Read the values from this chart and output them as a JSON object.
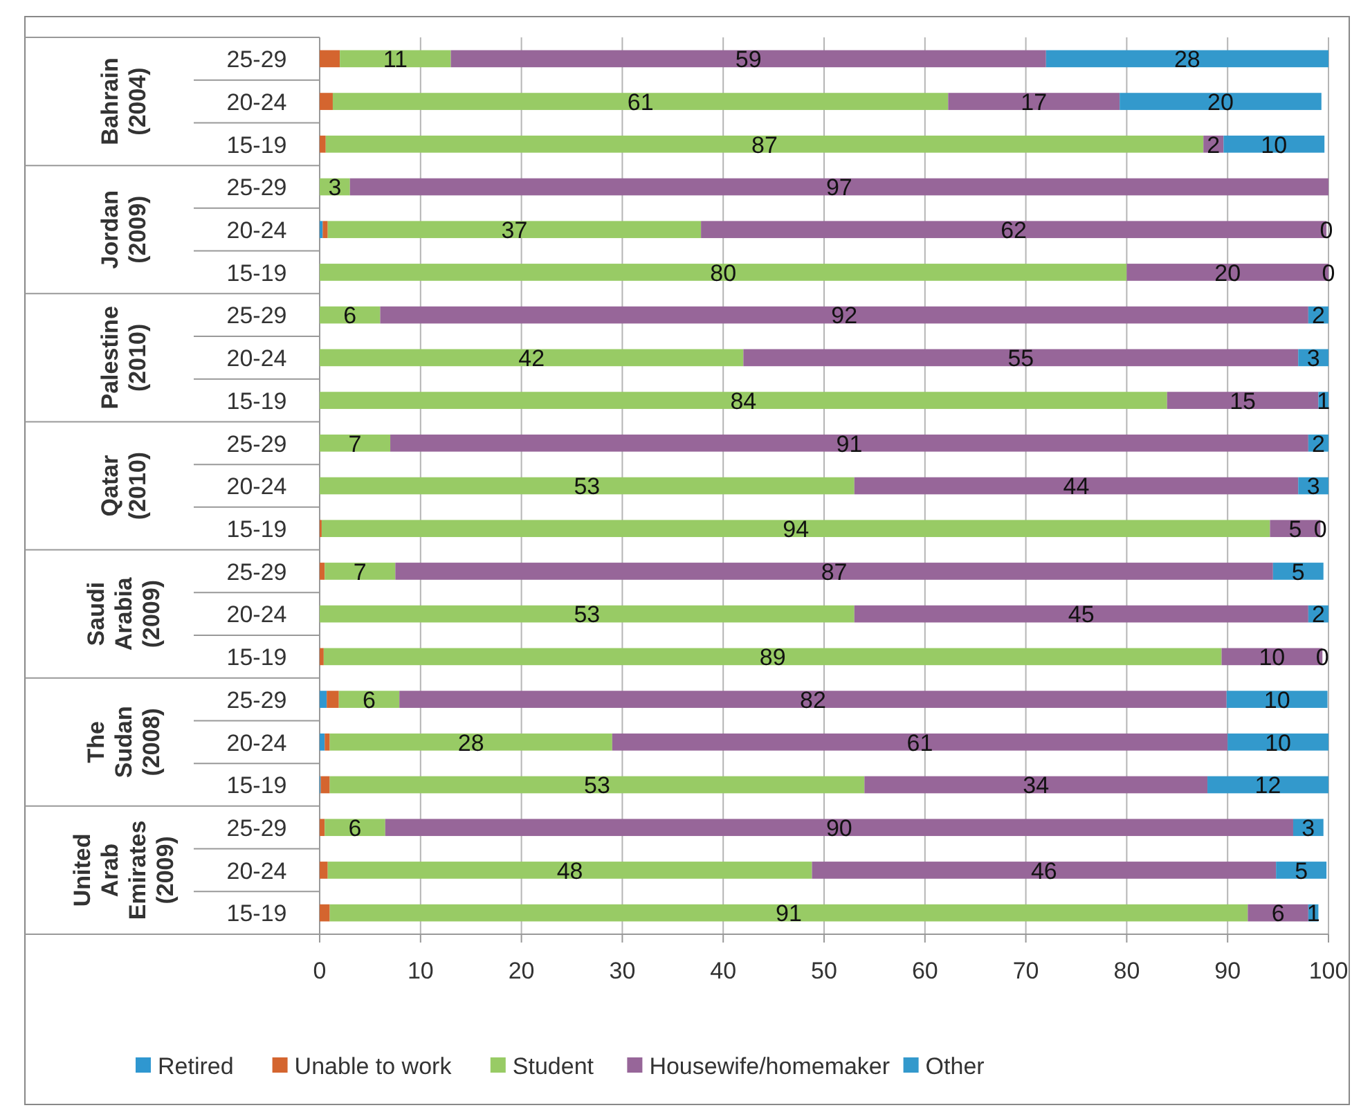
{
  "chart_data": {
    "type": "bar",
    "orientation": "horizontal",
    "stacked": true,
    "categories": [
      "25-29",
      "20-24",
      "15-19",
      "25-29",
      "20-24",
      "15-19",
      "25-29",
      "20-24",
      "15-19",
      "25-29",
      "20-24",
      "15-19",
      "25-29",
      "20-24",
      "15-19",
      "25-29",
      "20-24",
      "15-19",
      "25-29",
      "20-24",
      "15-19"
    ],
    "annotations": [
      "Bahrain (2004)",
      "Jordan (2009)",
      "Palestine (2010)",
      "Qatar (2010)",
      "Saudi Arabia (2009)",
      "The Sudan (2008)",
      "United Arab Emirates (2009)"
    ],
    "series": [
      {
        "name": "Retired",
        "color": "#2f97d0",
        "values": [
          0,
          0,
          0,
          0,
          0.3,
          0,
          0,
          0,
          0,
          0,
          0,
          0,
          0,
          0,
          0,
          0.7,
          0.5,
          0.1,
          0,
          0,
          0
        ]
      },
      {
        "name": "Unable to work",
        "color": "#d4652f",
        "values": [
          2,
          1.3,
          0.6,
          0,
          0.5,
          0,
          0,
          0,
          0,
          0,
          0,
          0.2,
          0.5,
          0,
          0.4,
          1.2,
          0.5,
          0.9,
          0.5,
          0.8,
          1.0
        ]
      },
      {
        "name": "Student",
        "color": "#98cb65",
        "values": [
          11,
          61,
          87,
          3,
          37,
          80,
          6,
          42,
          84,
          7,
          53,
          94,
          7,
          53,
          89,
          6,
          28,
          53,
          6,
          48,
          91
        ],
        "value_labels": [
          "11",
          "61",
          "87",
          "3",
          "37",
          "80",
          "6",
          "42",
          "84",
          "7",
          "53",
          "94",
          "7",
          "53",
          "89",
          "6",
          "28",
          "53",
          "6",
          "48",
          "91"
        ]
      },
      {
        "name": "Housewife/homemaker",
        "color": "#976699",
        "values": [
          59,
          17,
          2,
          97,
          62,
          20,
          92,
          55,
          15,
          91,
          44,
          5,
          87,
          45,
          10,
          82,
          61,
          34,
          90,
          46,
          6
        ],
        "value_labels": [
          "59",
          "17",
          "2",
          "97",
          "62",
          "20",
          "92",
          "55",
          "15",
          "91",
          "44",
          "5",
          "87",
          "45",
          "10",
          "82",
          "61",
          "34",
          "90",
          "46",
          "6"
        ]
      },
      {
        "name": "Other",
        "color": "#3399cc",
        "values": [
          28,
          20,
          10,
          null,
          0,
          0,
          2,
          3,
          1,
          2,
          3,
          0,
          5,
          2,
          0,
          10,
          10,
          12,
          3,
          5,
          1
        ],
        "value_labels": [
          "28",
          "20",
          "10",
          null,
          "0",
          "0",
          "2",
          "3",
          "1",
          "2",
          "3",
          "0",
          "5",
          "2",
          "0",
          "10",
          "10",
          "12",
          "3",
          "5",
          "1"
        ]
      }
    ],
    "xlim": [
      0,
      100
    ],
    "xticks": [
      0,
      10,
      20,
      30,
      40,
      50,
      60,
      70,
      80,
      90,
      100
    ],
    "grid": "x",
    "legend": "bottom"
  }
}
